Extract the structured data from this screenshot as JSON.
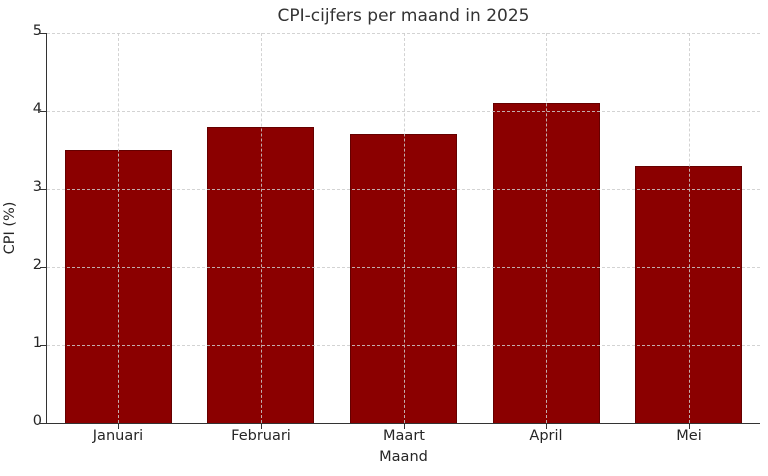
{
  "chart_data": {
    "type": "bar",
    "title": "CPI-cijfers per maand in 2025",
    "xlabel": "Maand",
    "ylabel": "CPI (%)",
    "categories": [
      "Januari",
      "Februari",
      "Maart",
      "April",
      "Mei"
    ],
    "values": [
      3.5,
      3.8,
      3.7,
      4.1,
      3.3
    ],
    "ylim": [
      0,
      5
    ],
    "yticks": [
      0,
      1,
      2,
      3,
      4,
      5
    ],
    "grid": "dashed, light gray, drawn above bars",
    "legend": "none",
    "bar_color": "#8b0000",
    "bar_edge_color": "#650000",
    "axis_color": "#333333",
    "grid_color": "#cccccc",
    "text_color": "#262626"
  }
}
